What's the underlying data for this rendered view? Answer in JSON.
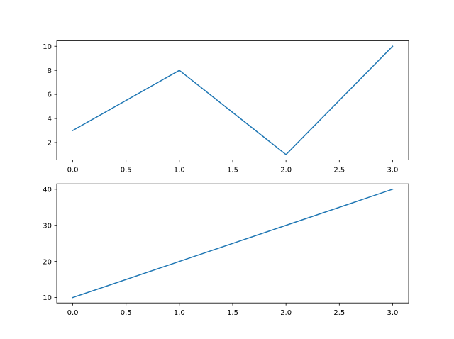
{
  "chart_data": [
    {
      "type": "line",
      "x": [
        0,
        1,
        2,
        3
      ],
      "series": [
        {
          "values": [
            3,
            8,
            1,
            10
          ],
          "color": "#1f77b4"
        }
      ],
      "xlim": [
        -0.15,
        3.15
      ],
      "ylim": [
        0.55,
        10.45
      ],
      "xticks": [
        "0.0",
        "0.5",
        "1.0",
        "1.5",
        "2.0",
        "2.5",
        "3.0"
      ],
      "yticks": [
        "2",
        "4",
        "6",
        "8",
        "10"
      ],
      "grid": false
    },
    {
      "type": "line",
      "x": [
        0,
        1,
        2,
        3
      ],
      "series": [
        {
          "values": [
            10,
            20,
            30,
            40
          ],
          "color": "#1f77b4"
        }
      ],
      "xlim": [
        -0.15,
        3.15
      ],
      "ylim": [
        8.5,
        41.5
      ],
      "xticks": [
        "0.0",
        "0.5",
        "1.0",
        "1.5",
        "2.0",
        "2.5",
        "3.0"
      ],
      "yticks": [
        "10",
        "20",
        "30",
        "40"
      ],
      "grid": false
    }
  ]
}
